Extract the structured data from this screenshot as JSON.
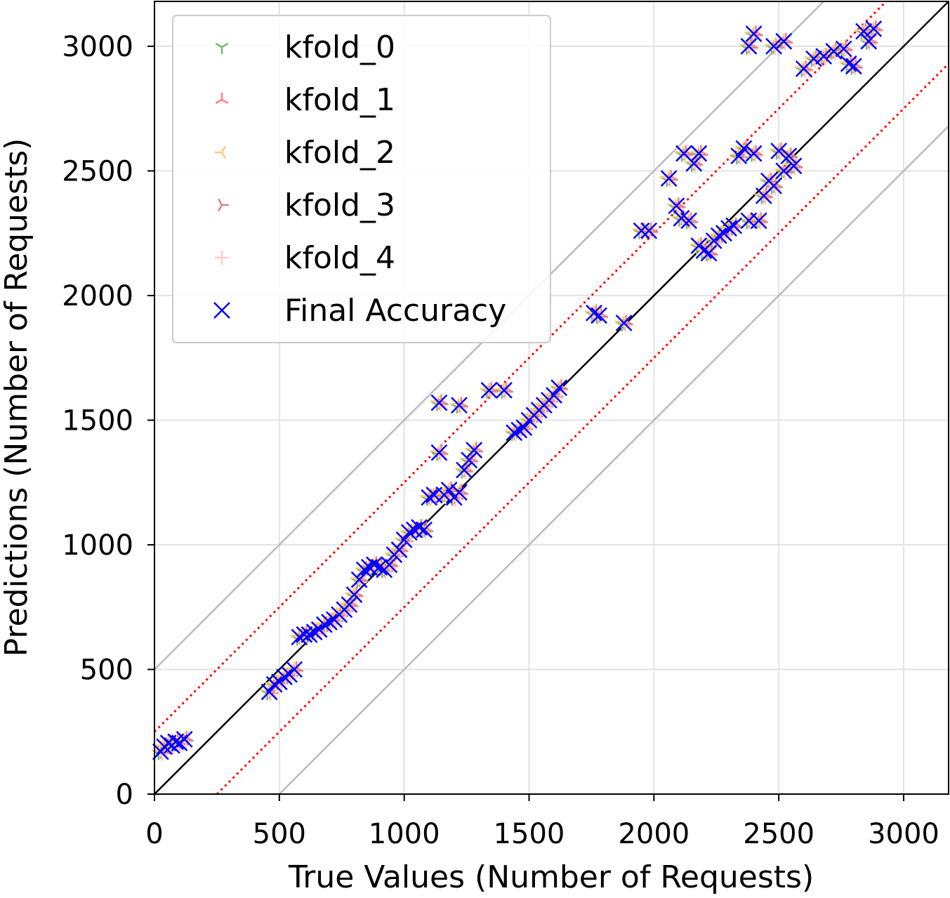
{
  "chart_data": {
    "type": "scatter",
    "title": "",
    "xlabel": "True Values (Number of Requests)",
    "ylabel": "Predictions (Number of Requests)",
    "xlim": [
      0,
      3180
    ],
    "ylim": [
      0,
      3180
    ],
    "x_ticks": [
      0,
      500,
      1000,
      1500,
      2000,
      2500,
      3000
    ],
    "y_ticks": [
      0,
      500,
      1000,
      1500,
      2000,
      2500,
      3000
    ],
    "grid": true,
    "legend_position": "upper-left",
    "reference_lines": {
      "identity": {
        "slope": 1,
        "offset": 0,
        "color": "#000000",
        "style": "solid"
      },
      "inner_band": {
        "offset": 250,
        "color": "#ff0000",
        "style": "dotted"
      },
      "outer_band": {
        "offset": 500,
        "color": "#bbbbbb",
        "style": "solid"
      }
    },
    "series": [
      {
        "name": "kfold_0",
        "marker": "tri_down",
        "color": "#77bb77"
      },
      {
        "name": "kfold_1",
        "marker": "tri_up",
        "color": "#ff8080"
      },
      {
        "name": "kfold_2",
        "marker": "tri_left",
        "color": "#ffcc77"
      },
      {
        "name": "kfold_3",
        "marker": "tri_right",
        "color": "#cc8888"
      },
      {
        "name": "kfold_4",
        "marker": "plus",
        "color": "#ffcccc"
      },
      {
        "name": "Final Accuracy",
        "marker": "x",
        "color": "#0000ff"
      }
    ],
    "points": {
      "x": [
        25,
        40,
        55,
        70,
        85,
        100,
        120,
        460,
        480,
        500,
        520,
        540,
        560,
        580,
        600,
        620,
        640,
        660,
        680,
        700,
        720,
        740,
        760,
        780,
        800,
        820,
        840,
        860,
        880,
        900,
        920,
        940,
        960,
        980,
        1000,
        1020,
        1040,
        1060,
        1080,
        1100,
        1120,
        1140,
        1140,
        1160,
        1180,
        1200,
        1220,
        1220,
        1240,
        1260,
        1280,
        1340,
        1400,
        1440,
        1460,
        1480,
        1500,
        1520,
        1540,
        1560,
        1580,
        1600,
        1620,
        1760,
        1780,
        1880,
        1950,
        1980,
        2060,
        2090,
        2110,
        2120,
        2140,
        2160,
        2180,
        2180,
        2200,
        2220,
        2240,
        2260,
        2280,
        2300,
        2320,
        2340,
        2360,
        2380,
        2400,
        2420,
        2440,
        2460,
        2480,
        2500,
        2520,
        2540,
        2560,
        2380,
        2400,
        2480,
        2520,
        2600,
        2640,
        2680,
        2720,
        2760,
        2780,
        2800,
        2840,
        2860,
        2880
      ],
      "y": [
        170,
        190,
        205,
        195,
        210,
        205,
        220,
        410,
        440,
        450,
        470,
        480,
        500,
        630,
        640,
        640,
        650,
        660,
        680,
        690,
        700,
        720,
        740,
        760,
        800,
        860,
        900,
        910,
        920,
        910,
        900,
        920,
        960,
        980,
        1020,
        1050,
        1060,
        1070,
        1060,
        1190,
        1200,
        1370,
        1570,
        1200,
        1220,
        1190,
        1210,
        1560,
        1300,
        1340,
        1380,
        1620,
        1620,
        1450,
        1460,
        1470,
        1500,
        1520,
        1540,
        1560,
        1580,
        1600,
        1630,
        1930,
        1920,
        1890,
        2260,
        2260,
        2470,
        2360,
        2310,
        2570,
        2300,
        2530,
        2200,
        2570,
        2180,
        2170,
        2220,
        2240,
        2250,
        2270,
        2280,
        2560,
        2590,
        2300,
        2570,
        2300,
        2400,
        2460,
        2440,
        2580,
        2500,
        2560,
        2520,
        3000,
        3050,
        3000,
        3020,
        2910,
        2950,
        2960,
        2980,
        2990,
        2930,
        2920,
        3060,
        3020,
        3070
      ]
    }
  }
}
